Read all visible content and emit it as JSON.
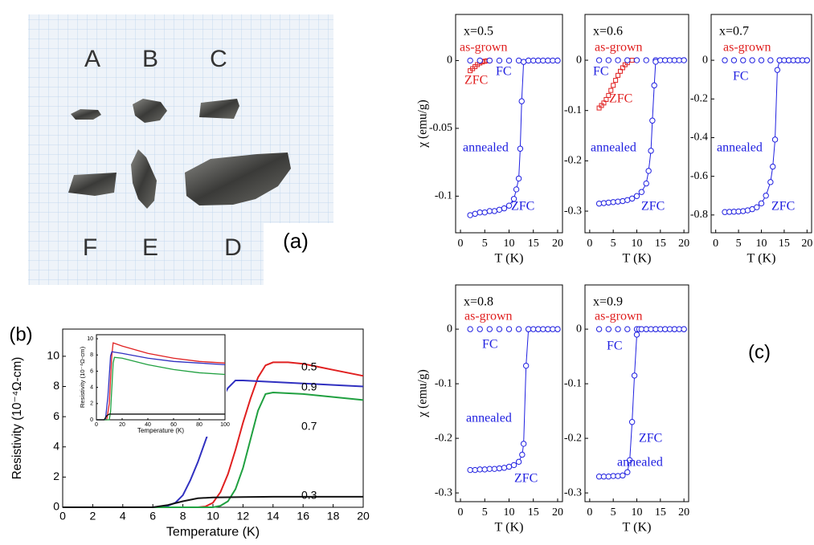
{
  "photo": {
    "samples": [
      "A",
      "B",
      "C",
      "F",
      "E",
      "D"
    ],
    "label": "(a)"
  },
  "panel_labels": {
    "b": "(b)",
    "c": "(c)"
  },
  "chart_data": [
    {
      "type": "line",
      "xlabel": "Temperature (K)",
      "ylabel": "Resistivity (10⁻⁴Ω-cm)",
      "xlim": [
        0,
        20
      ],
      "ylim": [
        0,
        11.8
      ],
      "xticks": [
        0,
        2,
        4,
        6,
        8,
        10,
        12,
        14,
        16,
        18,
        20
      ],
      "yticks": [
        0,
        2,
        4,
        6,
        8,
        10
      ],
      "series": [
        {
          "name": "0.5",
          "color": "#e02020",
          "x": [
            0,
            9,
            9.5,
            10,
            10.5,
            11,
            11.5,
            12,
            12.5,
            13,
            13.5,
            14,
            15,
            16,
            17,
            18,
            19,
            20
          ],
          "values": [
            0,
            0,
            0.05,
            0.3,
            1,
            2.2,
            3.8,
            5.6,
            7.2,
            8.6,
            9.4,
            9.6,
            9.6,
            9.5,
            9.3,
            9.1,
            8.9,
            8.7
          ]
        },
        {
          "name": "0.9",
          "color": "#3030c0",
          "x": [
            0,
            6,
            7,
            7.5,
            8,
            8.5,
            9,
            9.5,
            10,
            10.5,
            11,
            11.5,
            12,
            14,
            16,
            18,
            20
          ],
          "values": [
            0,
            0,
            0.1,
            0.3,
            0.8,
            1.8,
            3,
            4.4,
            5.8,
            7,
            7.9,
            8.4,
            8.4,
            8.3,
            8.2,
            8.1,
            8.0
          ]
        },
        {
          "name": "0.7",
          "color": "#20a040",
          "x": [
            0,
            10,
            10.5,
            11,
            11.5,
            12,
            12.5,
            13,
            13.5,
            14,
            16,
            18,
            20
          ],
          "values": [
            0,
            0,
            0.1,
            0.4,
            1.2,
            2.6,
            4.5,
            6.4,
            7.5,
            7.6,
            7.5,
            7.3,
            7.1
          ]
        },
        {
          "name": "0.3",
          "color": "#111111",
          "x": [
            0,
            6,
            7,
            8,
            9,
            10,
            12,
            14,
            16,
            18,
            20
          ],
          "values": [
            0,
            0,
            0.15,
            0.4,
            0.6,
            0.65,
            0.68,
            0.7,
            0.7,
            0.7,
            0.7
          ]
        }
      ]
    },
    {
      "type": "line",
      "xlabel": "Temperature (K)",
      "ylabel": "Resistivity (10⁻⁴Ω-cm)",
      "xlim": [
        0,
        100
      ],
      "ylim": [
        0,
        10.5
      ],
      "xticks": [
        0,
        20,
        40,
        60,
        80,
        100
      ],
      "yticks": [
        0,
        2,
        4,
        6,
        8,
        10
      ],
      "series": [
        {
          "color": "#e02020",
          "x": [
            0,
            8,
            10,
            12,
            13,
            20,
            40,
            60,
            80,
            100
          ],
          "values": [
            0,
            0,
            2,
            8,
            9.5,
            9.1,
            8.2,
            7.6,
            7.2,
            7.0
          ]
        },
        {
          "color": "#3030c0",
          "x": [
            0,
            7,
            9,
            11,
            12,
            20,
            40,
            60,
            80,
            100
          ],
          "values": [
            0,
            0,
            3,
            7.9,
            8.4,
            8.2,
            7.6,
            7.2,
            7.0,
            6.8
          ]
        },
        {
          "color": "#20a040",
          "x": [
            0,
            10,
            11,
            12,
            13,
            14,
            20,
            40,
            60,
            80,
            100
          ],
          "values": [
            0,
            0,
            1,
            4,
            7,
            7.7,
            7.6,
            6.8,
            6.2,
            5.8,
            5.6
          ]
        },
        {
          "color": "#111111",
          "x": [
            0,
            6,
            8,
            10,
            20,
            40,
            60,
            80,
            100
          ],
          "values": [
            0,
            0,
            0.5,
            0.7,
            0.7,
            0.7,
            0.7,
            0.7,
            0.7
          ]
        }
      ]
    },
    {
      "type": "line",
      "title": "x=0.5",
      "xlabel": "T (K)",
      "ylabel": "χ (emu/g)",
      "xlim": [
        -1,
        21
      ],
      "ylim": [
        -0.127,
        0.034
      ],
      "xticks": [
        0,
        5,
        10,
        15,
        20
      ],
      "yticks": [
        0,
        -0.05,
        -0.1
      ],
      "series": [
        {
          "color": "#e02020",
          "marker": "square",
          "line": false,
          "x": [
            2,
            2.5,
            3,
            3.5,
            4,
            4.5,
            5,
            5.5,
            6
          ],
          "values": [
            -0.0075,
            -0.006,
            -0.0045,
            -0.003,
            -0.0018,
            -0.001,
            -0.0005,
            -0.0002,
            0
          ]
        },
        {
          "color": "#2020e0",
          "marker": "circle",
          "line": false,
          "x": [
            2,
            4,
            6,
            8,
            10,
            12,
            14,
            16,
            18,
            20
          ],
          "values": [
            0,
            0,
            0,
            0,
            0,
            0,
            0,
            0,
            0,
            0
          ]
        },
        {
          "color": "#2020e0",
          "marker": "circle",
          "line": true,
          "x": [
            2,
            3,
            4,
            5,
            6,
            7,
            8,
            9,
            10,
            11,
            11.5,
            12,
            12.3,
            12.6,
            13,
            14,
            15,
            16,
            17,
            18,
            19,
            20
          ],
          "values": [
            -0.114,
            -0.113,
            -0.112,
            -0.112,
            -0.111,
            -0.111,
            -0.11,
            -0.109,
            -0.107,
            -0.102,
            -0.095,
            -0.087,
            -0.065,
            -0.03,
            -0.001,
            0,
            0,
            0,
            0,
            0,
            0,
            0
          ]
        }
      ],
      "annotations": [
        {
          "text": "as-grown",
          "color": "#e02020"
        },
        {
          "text": "ZFC",
          "color": "#e02020"
        },
        {
          "text": "FC",
          "color": "#2020e0"
        },
        {
          "text": "annealed",
          "color": "#2020e0"
        },
        {
          "text": "ZFC",
          "color": "#2020e0"
        }
      ]
    },
    {
      "type": "line",
      "title": "x=0.6",
      "xlabel": "T (K)",
      "xlim": [
        -1,
        21
      ],
      "ylim": [
        -0.343,
        0.091
      ],
      "xticks": [
        0,
        5,
        10,
        15,
        20
      ],
      "yticks": [
        0,
        -0.1,
        -0.2,
        -0.3
      ],
      "series": [
        {
          "color": "#e02020",
          "marker": "square",
          "line": false,
          "x": [
            2,
            2.5,
            3,
            3.5,
            4,
            4.5,
            5,
            5.5,
            6,
            6.5,
            7,
            7.5,
            8,
            9
          ],
          "values": [
            -0.095,
            -0.09,
            -0.085,
            -0.078,
            -0.07,
            -0.06,
            -0.05,
            -0.04,
            -0.03,
            -0.022,
            -0.015,
            -0.009,
            -0.005,
            0
          ]
        },
        {
          "color": "#2020e0",
          "marker": "circle",
          "line": false,
          "x": [
            2,
            4,
            6,
            8,
            10,
            12,
            14,
            16,
            18,
            20
          ],
          "values": [
            0,
            0,
            0,
            0,
            0,
            0,
            0,
            0,
            0,
            0
          ]
        },
        {
          "color": "#2020e0",
          "marker": "circle",
          "line": true,
          "x": [
            2,
            3,
            4,
            5,
            6,
            7,
            8,
            9,
            10,
            11,
            12,
            12.5,
            13,
            13.3,
            13.7,
            14,
            15,
            16,
            17,
            18,
            19,
            20
          ],
          "values": [
            -0.285,
            -0.284,
            -0.283,
            -0.282,
            -0.281,
            -0.28,
            -0.278,
            -0.275,
            -0.27,
            -0.262,
            -0.245,
            -0.22,
            -0.18,
            -0.12,
            -0.05,
            -0.003,
            0,
            0,
            0,
            0,
            0,
            0
          ]
        }
      ],
      "annotations": [
        {
          "text": "as-grown",
          "color": "#e02020"
        },
        {
          "text": "FC",
          "color": "#2020e0"
        },
        {
          "text": "ZFC",
          "color": "#e02020"
        },
        {
          "text": "annealed",
          "color": "#2020e0"
        },
        {
          "text": "ZFC",
          "color": "#2020e0"
        }
      ]
    },
    {
      "type": "line",
      "title": "x=0.7",
      "xlabel": "T (K)",
      "xlim": [
        -1,
        21
      ],
      "ylim": [
        -0.892,
        0.237
      ],
      "xticks": [
        0,
        5,
        10,
        15,
        20
      ],
      "yticks": [
        0,
        -0.2,
        -0.4,
        -0.6,
        -0.8
      ],
      "series": [
        {
          "color": "#2020e0",
          "marker": "circle",
          "line": false,
          "x": [
            2,
            4,
            6,
            8,
            10,
            12,
            14,
            16,
            18,
            20
          ],
          "values": [
            0,
            0,
            0,
            0,
            0,
            0,
            0,
            0,
            0,
            0
          ]
        },
        {
          "color": "#2020e0",
          "marker": "circle",
          "line": true,
          "x": [
            2,
            3,
            4,
            5,
            6,
            7,
            8,
            9,
            10,
            11,
            12,
            12.5,
            13,
            13.5,
            14,
            15,
            16,
            17,
            18,
            19,
            20
          ],
          "values": [
            -0.785,
            -0.784,
            -0.783,
            -0.782,
            -0.78,
            -0.776,
            -0.77,
            -0.76,
            -0.74,
            -0.7,
            -0.63,
            -0.55,
            -0.41,
            -0.05,
            0,
            0,
            0,
            0,
            0,
            0,
            0
          ]
        }
      ],
      "annotations": [
        {
          "text": "as-grown",
          "color": "#e02020"
        },
        {
          "text": "FC",
          "color": "#2020e0"
        },
        {
          "text": "annealed",
          "color": "#2020e0"
        },
        {
          "text": "ZFC",
          "color": "#2020e0"
        }
      ]
    },
    {
      "type": "line",
      "title": "x=0.8",
      "xlabel": "T (K)",
      "ylabel": "χ (emu/g)",
      "xlim": [
        -1,
        21
      ],
      "ylim": [
        -0.316,
        0.081
      ],
      "xticks": [
        0,
        5,
        10,
        15,
        20
      ],
      "yticks": [
        0,
        -0.1,
        -0.2,
        -0.3
      ],
      "series": [
        {
          "color": "#2020e0",
          "marker": "circle",
          "line": false,
          "x": [
            2,
            4,
            6,
            8,
            10,
            12,
            14,
            16,
            18,
            20
          ],
          "values": [
            0,
            0,
            0,
            0,
            0,
            0,
            0,
            0,
            0,
            0
          ]
        },
        {
          "color": "#2020e0",
          "marker": "circle",
          "line": true,
          "x": [
            2,
            3,
            4,
            5,
            6,
            7,
            8,
            9,
            10,
            11,
            12,
            12.7,
            13,
            13.5,
            14,
            15,
            16,
            17,
            18,
            19,
            20
          ],
          "values": [
            -0.258,
            -0.258,
            -0.257,
            -0.257,
            -0.256,
            -0.256,
            -0.255,
            -0.254,
            -0.252,
            -0.249,
            -0.243,
            -0.23,
            -0.21,
            -0.067,
            0,
            0,
            0,
            0,
            0,
            0,
            0
          ]
        }
      ],
      "annotations": [
        {
          "text": "as-grown",
          "color": "#e02020"
        },
        {
          "text": "FC",
          "color": "#2020e0"
        },
        {
          "text": "annealed",
          "color": "#2020e0"
        },
        {
          "text": "ZFC",
          "color": "#2020e0"
        }
      ]
    },
    {
      "type": "line",
      "title": "x=0.9",
      "xlabel": "T (K)",
      "xlim": [
        -1,
        21
      ],
      "ylim": [
        -0.316,
        0.081
      ],
      "xticks": [
        0,
        5,
        10,
        15,
        20
      ],
      "yticks": [
        0,
        -0.1,
        -0.2,
        -0.3
      ],
      "series": [
        {
          "color": "#2020e0",
          "marker": "circle",
          "line": false,
          "x": [
            2,
            4,
            6,
            8,
            10,
            12,
            14,
            16,
            18,
            20
          ],
          "values": [
            0,
            0,
            0,
            0,
            0,
            0,
            0,
            0,
            0,
            0
          ]
        },
        {
          "color": "#2020e0",
          "marker": "circle",
          "line": true,
          "x": [
            2,
            3,
            4,
            5,
            6,
            7,
            8,
            8.5,
            9,
            9.5,
            10,
            10.5,
            11,
            12,
            13,
            14,
            15,
            16,
            17,
            18,
            19,
            20
          ],
          "values": [
            -0.27,
            -0.27,
            -0.27,
            -0.269,
            -0.269,
            -0.268,
            -0.262,
            -0.24,
            -0.17,
            -0.085,
            -0.01,
            0,
            0,
            0,
            0,
            0,
            0,
            0,
            0,
            0,
            0,
            0
          ]
        }
      ],
      "annotations": [
        {
          "text": "as-grown",
          "color": "#e02020"
        },
        {
          "text": "FC",
          "color": "#2020e0"
        },
        {
          "text": "ZFC",
          "color": "#2020e0"
        },
        {
          "text": "annealed",
          "color": "#2020e0"
        }
      ]
    }
  ]
}
